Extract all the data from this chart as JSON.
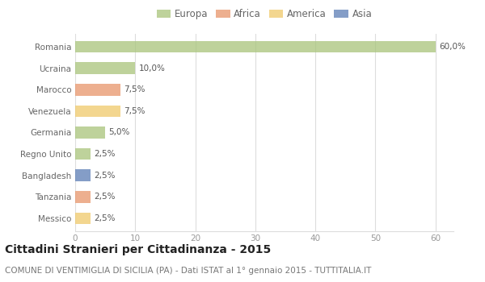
{
  "countries": [
    "Romania",
    "Ucraina",
    "Marocco",
    "Venezuela",
    "Germania",
    "Regno Unito",
    "Bangladesh",
    "Tanzania",
    "Messico"
  ],
  "values": [
    60.0,
    10.0,
    7.5,
    7.5,
    5.0,
    2.5,
    2.5,
    2.5,
    2.5
  ],
  "labels": [
    "60,0%",
    "10,0%",
    "7,5%",
    "7,5%",
    "5,0%",
    "2,5%",
    "2,5%",
    "2,5%",
    "2,5%"
  ],
  "colors": [
    "#a8c47a",
    "#a8c47a",
    "#e8956a",
    "#f0c96a",
    "#a8c47a",
    "#a8c47a",
    "#5b7db5",
    "#e8956a",
    "#f0c96a"
  ],
  "legend_labels": [
    "Europa",
    "Africa",
    "America",
    "Asia"
  ],
  "legend_colors": [
    "#a8c47a",
    "#e8956a",
    "#f0c96a",
    "#5b7db5"
  ],
  "title": "Cittadini Stranieri per Cittadinanza - 2015",
  "subtitle": "COMUNE DI VENTIMIGLIA DI SICILIA (PA) - Dati ISTAT al 1° gennaio 2015 - TUTTITALIA.IT",
  "xlim": [
    0,
    63
  ],
  "xticks": [
    0,
    10,
    20,
    30,
    40,
    50,
    60
  ],
  "background_color": "#ffffff",
  "bar_height": 0.55,
  "grid_color": "#dddddd",
  "title_fontsize": 10,
  "subtitle_fontsize": 7.5,
  "label_fontsize": 7.5,
  "tick_fontsize": 7.5,
  "legend_fontsize": 8.5
}
